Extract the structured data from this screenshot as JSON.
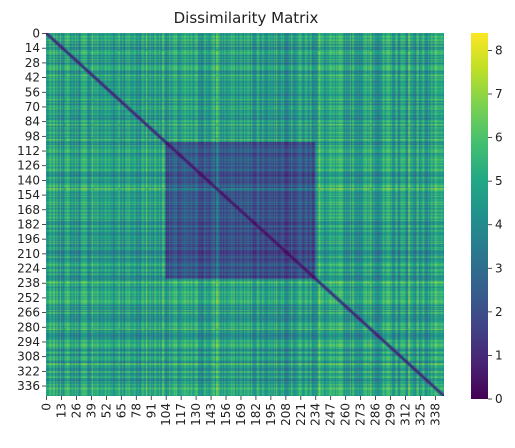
{
  "chart_data": {
    "type": "heatmap",
    "title": "Dissimilarity Matrix",
    "n": 346,
    "colormap": "viridis",
    "value_range": [
      0,
      8.4
    ],
    "y_ticks": [
      "0",
      "14",
      "28",
      "42",
      "56",
      "70",
      "84",
      "98",
      "112",
      "126",
      "140",
      "154",
      "168",
      "182",
      "196",
      "210",
      "224",
      "238",
      "252",
      "266",
      "280",
      "294",
      "308",
      "322",
      "336"
    ],
    "x_ticks": [
      "0",
      "13",
      "26",
      "39",
      "52",
      "65",
      "78",
      "91",
      "104",
      "117",
      "130",
      "143",
      "156",
      "169",
      "182",
      "195",
      "208",
      "221",
      "234",
      "247",
      "260",
      "273",
      "286",
      "299",
      "312",
      "325",
      "338"
    ],
    "colorbar_ticks": [
      "0",
      "1",
      "2",
      "3",
      "4",
      "5",
      "6",
      "7",
      "8"
    ],
    "diagonal_value": 0,
    "low_dissimilarity_block": {
      "start": 104,
      "end": 233,
      "approx_value": 2.2
    },
    "off_block_approx_value": 4.6
  }
}
